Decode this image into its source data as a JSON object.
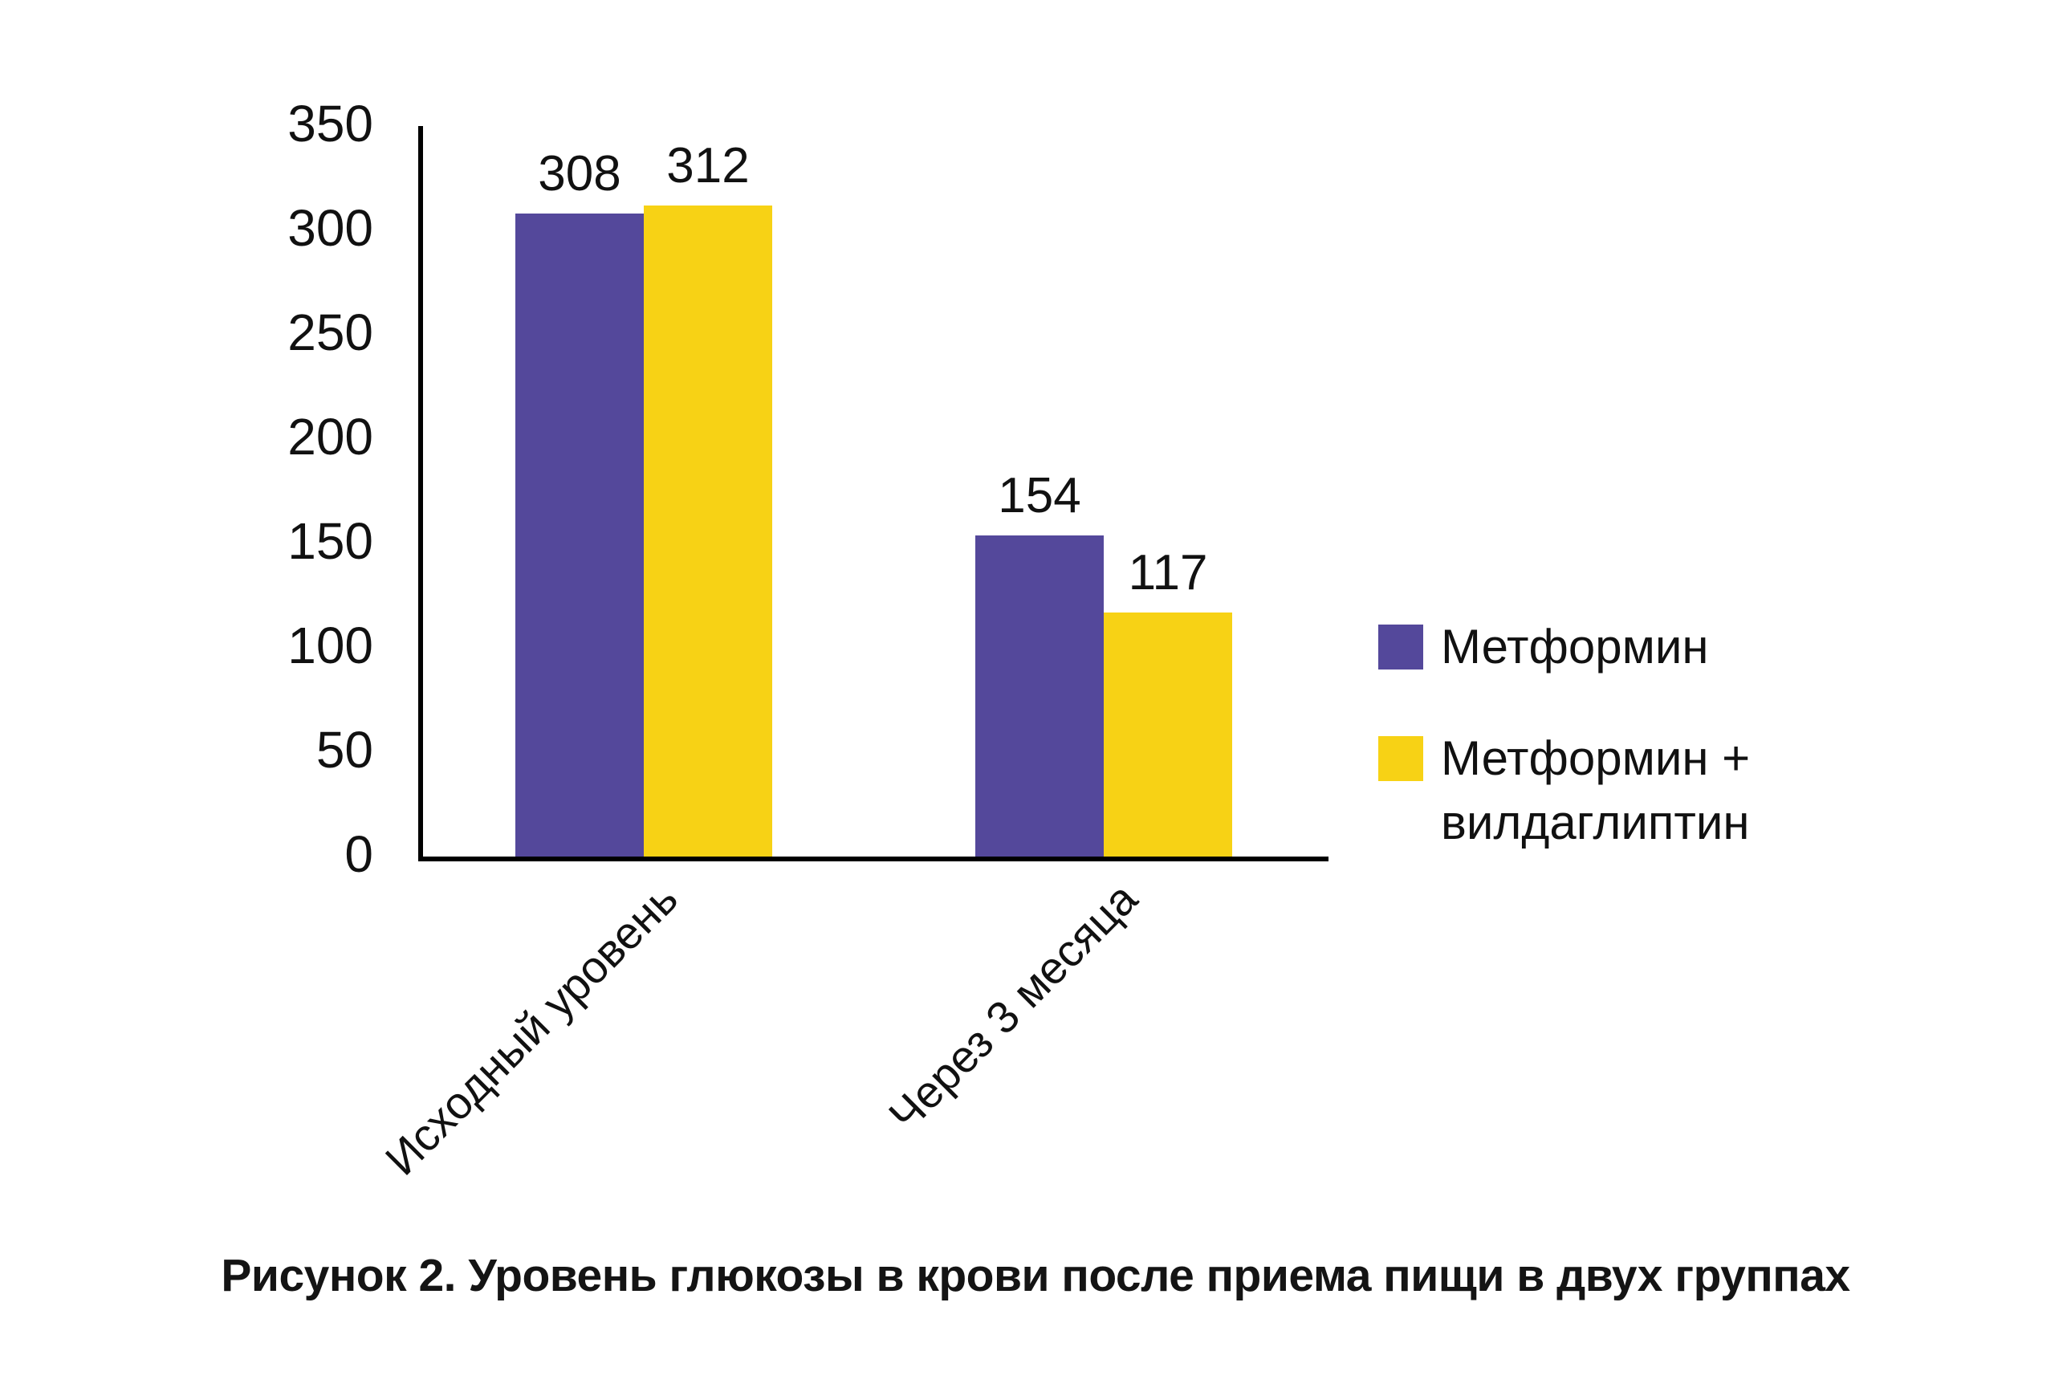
{
  "caption": "Рисунок 2. Уровень глюкозы в крови после приема пищи в двух группах",
  "colors": {
    "series_metformin": "#54489B",
    "series_metformin_vildagliptin": "#F7D215",
    "axis": "#000000",
    "text": "#111111"
  },
  "chart_data": {
    "type": "bar",
    "categories": [
      "Исходный уровень",
      "Через 3 месяца"
    ],
    "series": [
      {
        "name": "Метформин",
        "color": "#54489B",
        "values": [
          308,
          154
        ]
      },
      {
        "name": "Метформин + вилдаглиптин",
        "color": "#F7D215",
        "values": [
          312,
          117
        ]
      }
    ],
    "value_labels": true,
    "ylim": [
      0,
      350
    ],
    "yticks": [
      0,
      50,
      100,
      150,
      200,
      250,
      300,
      350
    ],
    "grid": false,
    "legend_position": "right",
    "title": "",
    "xlabel": "",
    "ylabel": ""
  },
  "legend": {
    "items": [
      {
        "label_lines": [
          "Метформин"
        ],
        "color": "#54489B"
      },
      {
        "label_lines": [
          "Метформин +",
          "вилдаглиптин"
        ],
        "color": "#F7D215"
      }
    ]
  }
}
